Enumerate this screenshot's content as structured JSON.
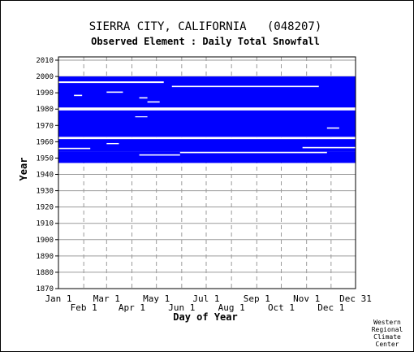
{
  "chart_data": {
    "type": "heatmap",
    "title": "SIERRA CITY, CALIFORNIA   (048207)",
    "subtitle": "Observed Element : Daily Total Snowfall",
    "xlabel": "Day of Year",
    "ylabel": "Year",
    "ylim": [
      1870,
      2012
    ],
    "yticks": [
      1870,
      1880,
      1890,
      1900,
      1910,
      1920,
      1930,
      1940,
      1950,
      1960,
      1970,
      1980,
      1990,
      2000,
      2010
    ],
    "xticks_top_row": [
      "Jan 1",
      "Mar 1",
      "May 1",
      "Jul 1",
      "Sep 1",
      "Nov 1",
      "Dec 31"
    ],
    "xticks_bottom_row": [
      "Feb 1",
      "Apr 1",
      "Jun 1",
      "Aug 1",
      "Oct 1",
      "Dec 1"
    ],
    "xtick_days": {
      "Jan 1": 1,
      "Feb 1": 32,
      "Mar 1": 60,
      "Apr 1": 91,
      "May 1": 121,
      "Jun 1": 152,
      "Jul 1": 182,
      "Aug 1": 213,
      "Sep 1": 244,
      "Oct 1": 274,
      "Nov 1": 305,
      "Dec 1": 335,
      "Dec 31": 365
    },
    "grid": true,
    "data_color": "#0000ff",
    "description_of_series": "Blue marks days with observed data",
    "data_blocks": [
      {
        "year_start": 1947,
        "year_end": 1953,
        "day_start": 1,
        "day_end": 365
      },
      {
        "year_start": 1954,
        "year_end": 1961,
        "day_start": 1,
        "day_end": 365
      },
      {
        "year_start": 1963,
        "year_end": 1979,
        "day_start": 1,
        "day_end": 365
      },
      {
        "year_start": 1981,
        "year_end": 1999,
        "day_start": 1,
        "day_end": 365
      }
    ],
    "gaps": [
      {
        "year_start": 1961.6,
        "year_end": 1962.6,
        "day_start": 1,
        "day_end": 365
      },
      {
        "year_start": 1979.2,
        "year_end": 1980.6,
        "day_start": 1,
        "day_end": 365
      },
      {
        "year_start": 1996.0,
        "year_end": 1997.0,
        "day_start": 1,
        "day_end": 130
      },
      {
        "year_start": 1993.5,
        "year_end": 1994.3,
        "day_start": 140,
        "day_end": 320
      },
      {
        "year_start": 1990.0,
        "year_end": 1990.8,
        "day_start": 60,
        "day_end": 80
      },
      {
        "year_start": 1988.0,
        "year_end": 1988.8,
        "day_start": 20,
        "day_end": 30
      },
      {
        "year_start": 1986.5,
        "year_end": 1987.3,
        "day_start": 100,
        "day_end": 110
      },
      {
        "year_start": 1955.5,
        "year_end": 1956.3,
        "day_start": 1,
        "day_end": 40
      },
      {
        "year_start": 1953.0,
        "year_end": 1953.8,
        "day_start": 150,
        "day_end": 330
      },
      {
        "year_start": 1951.5,
        "year_end": 1952.3,
        "day_start": 100,
        "day_end": 150
      },
      {
        "year_start": 1956.0,
        "year_end": 1956.8,
        "day_start": 300,
        "day_end": 365
      },
      {
        "year_start": 1958.5,
        "year_end": 1959.2,
        "day_start": 60,
        "day_end": 75
      },
      {
        "year_start": 1968.0,
        "year_end": 1968.8,
        "day_start": 330,
        "day_end": 345
      },
      {
        "year_start": 1975.0,
        "year_end": 1975.6,
        "day_start": 95,
        "day_end": 110
      },
      {
        "year_start": 1984.0,
        "year_end": 1984.8,
        "day_start": 110,
        "day_end": 125
      }
    ],
    "credit": [
      "Western",
      "Regional",
      "Climate",
      "Center"
    ]
  }
}
